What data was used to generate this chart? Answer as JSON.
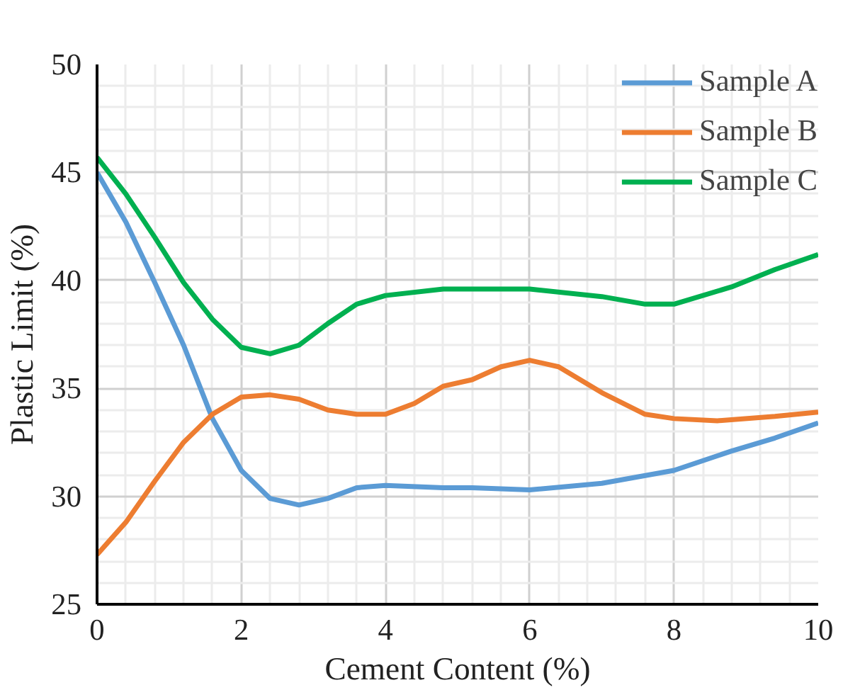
{
  "chart_data": {
    "type": "line",
    "xlabel": "Cement Content (%)",
    "ylabel": "Plastic Limit (%)",
    "xlim": [
      0,
      10
    ],
    "ylim": [
      25,
      50
    ],
    "xticks": [
      0,
      2,
      4,
      6,
      8,
      10
    ],
    "yticks": [
      25,
      30,
      35,
      40,
      45,
      50
    ],
    "grid": true,
    "legend": "top right",
    "line_style": "solid",
    "marker": "none",
    "series": [
      {
        "name": "Sample A",
        "color": "#5b9bd5",
        "x": [
          0,
          0.4,
          0.8,
          1.2,
          1.6,
          2.0,
          2.4,
          2.8,
          3.2,
          3.6,
          4.0,
          4.8,
          5.2,
          6,
          7,
          8,
          8.8,
          9.4,
          10
        ],
        "values": [
          45.0,
          42.7,
          39.9,
          37.0,
          33.6,
          31.2,
          29.9,
          29.6,
          29.9,
          30.4,
          30.5,
          30.4,
          30.4,
          30.3,
          30.6,
          31.2,
          32.1,
          32.7,
          33.4
        ]
      },
      {
        "name": "Sample B",
        "color": "#ed7d31",
        "x": [
          0,
          0.4,
          0.8,
          1.2,
          1.6,
          2.0,
          2.4,
          2.8,
          3.2,
          3.6,
          4.0,
          4.4,
          4.8,
          5.2,
          5.6,
          6,
          6.4,
          7,
          7.6,
          8,
          8.6,
          9.4,
          10
        ],
        "values": [
          27.3,
          28.8,
          30.7,
          32.5,
          33.8,
          34.6,
          34.7,
          34.5,
          34.0,
          33.8,
          33.8,
          34.3,
          35.1,
          35.4,
          36.0,
          36.3,
          36.0,
          34.8,
          33.8,
          33.6,
          33.5,
          33.7,
          33.9
        ]
      },
      {
        "name": "Sample C",
        "color": "#00b050",
        "x": [
          0,
          0.4,
          0.8,
          1.2,
          1.6,
          2.0,
          2.4,
          2.8,
          3.2,
          3.6,
          4.0,
          4.8,
          5.2,
          6,
          7,
          7.6,
          8,
          8.8,
          9.4,
          10
        ],
        "values": [
          45.7,
          44.0,
          42.0,
          39.9,
          38.2,
          36.9,
          36.6,
          37.0,
          38.0,
          38.9,
          39.3,
          39.6,
          39.6,
          39.6,
          39.25,
          38.9,
          38.9,
          39.7,
          40.5,
          41.2
        ]
      }
    ]
  }
}
